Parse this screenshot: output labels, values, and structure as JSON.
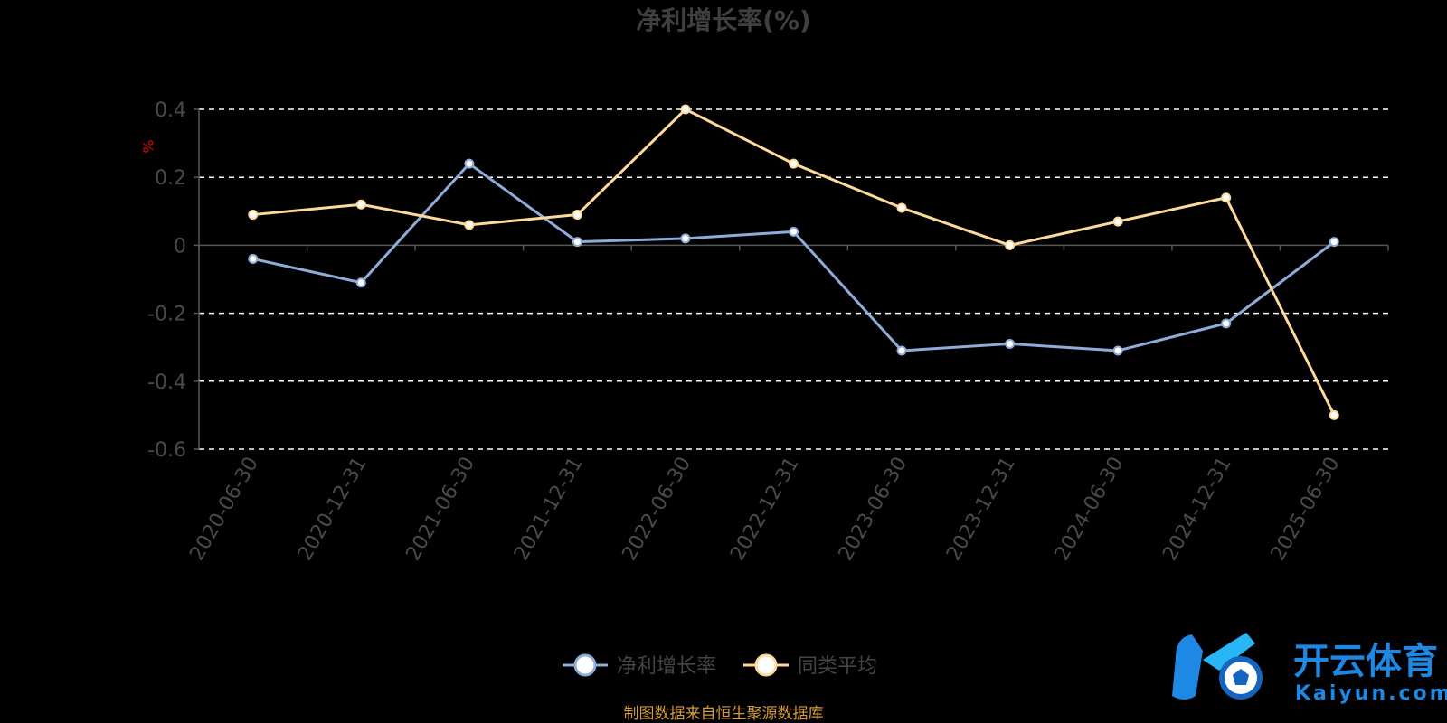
{
  "chart_data": {
    "type": "line",
    "title": "净利增长率(%)",
    "ylabel": "%",
    "xlabel": "",
    "categories": [
      "2020-06-30",
      "2020-12-31",
      "2021-06-30",
      "2021-12-31",
      "2022-06-30",
      "2022-12-31",
      "2023-06-30",
      "2023-12-31",
      "2024-06-30",
      "2024-12-31",
      "2025-06-30"
    ],
    "ylim": [
      -0.6,
      0.4
    ],
    "yticks": [
      "0.4",
      "0.2",
      "0",
      "-0.2",
      "-0.4",
      "-0.6"
    ],
    "yticks_values": [
      0.4,
      0.2,
      0,
      -0.2,
      -0.4,
      -0.6
    ],
    "grid": true,
    "legend_position": "bottom",
    "series": [
      {
        "name": "净利增长率",
        "color": "#8fabd8",
        "values": [
          -0.04,
          -0.11,
          0.24,
          0.01,
          0.02,
          0.04,
          -0.31,
          -0.29,
          -0.31,
          -0.23,
          0.01
        ]
      },
      {
        "name": "同类平均",
        "color": "#fdd99a",
        "values": [
          0.09,
          0.12,
          0.06,
          0.09,
          0.4,
          0.24,
          0.11,
          0.0,
          0.07,
          0.14,
          -0.5
        ]
      }
    ],
    "source_note": "制图数据来自恒生聚源数据库"
  },
  "watermark": {
    "cn": "开云体育",
    "en": "Kaiyun.com",
    "color": "#1e88e5"
  }
}
